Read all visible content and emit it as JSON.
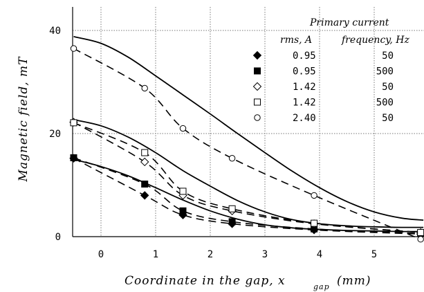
{
  "chart_data": {
    "type": "line",
    "xlabel": "Coordinate in the gap, x",
    "xlabel_subscript": "gap",
    "xlabel_unit": "(mm)",
    "ylabel": "Magnetic field, mT",
    "xlim": [
      -0.5,
      5.9
    ],
    "ylim": [
      0,
      40
    ],
    "xticks": [
      0,
      1,
      2,
      3,
      4,
      5
    ],
    "yticks": [
      0,
      20,
      40
    ],
    "grid": "dotted",
    "legend": {
      "placement": "top-right",
      "title": "Primary current",
      "columns": [
        "rms, A",
        "frequency, Hz"
      ]
    },
    "series": [
      {
        "marker": "filled-diamond",
        "current": "0.95",
        "frequency": "50",
        "points": [
          [
            -0.5,
            15.2
          ],
          [
            0.8,
            8.0
          ],
          [
            1.5,
            4.2
          ],
          [
            2.4,
            2.5
          ],
          [
            3.9,
            1.3
          ],
          [
            5.85,
            0.5
          ]
        ]
      },
      {
        "marker": "filled-square",
        "current": "0.95",
        "frequency": "500",
        "points": [
          [
            -0.5,
            15.3
          ],
          [
            0.8,
            10.2
          ],
          [
            1.5,
            5.0
          ],
          [
            2.4,
            2.9
          ],
          [
            3.9,
            1.5
          ],
          [
            5.85,
            0.6
          ]
        ]
      },
      {
        "marker": "open-diamond",
        "current": "1.42",
        "frequency": "50",
        "points": [
          [
            -0.5,
            22.2
          ],
          [
            0.8,
            14.5
          ],
          [
            1.5,
            8.0
          ],
          [
            2.4,
            5.0
          ],
          [
            3.9,
            2.5
          ],
          [
            5.85,
            0.8
          ]
        ]
      },
      {
        "marker": "open-square",
        "current": "1.42",
        "frequency": "500",
        "points": [
          [
            -0.5,
            22.1
          ],
          [
            0.8,
            16.3
          ],
          [
            1.5,
            8.8
          ],
          [
            2.4,
            5.4
          ],
          [
            3.9,
            2.6
          ],
          [
            5.85,
            0.8
          ]
        ]
      },
      {
        "marker": "open-circle",
        "current": "2.40",
        "frequency": "50",
        "points": [
          [
            -0.5,
            36.5
          ],
          [
            0.8,
            28.8
          ],
          [
            1.5,
            21.0
          ],
          [
            2.4,
            15.2
          ],
          [
            3.9,
            8.0
          ],
          [
            5.85,
            -0.5
          ]
        ]
      }
    ],
    "solid_curves": [
      {
        "points": [
          [
            -0.5,
            38.8
          ],
          [
            0,
            37.5
          ],
          [
            0.5,
            34.8
          ],
          [
            1,
            31.2
          ],
          [
            1.5,
            27.5
          ],
          [
            2,
            23.8
          ],
          [
            2.5,
            20.0
          ],
          [
            3,
            16.3
          ],
          [
            3.5,
            12.7
          ],
          [
            4,
            9.5
          ],
          [
            4.5,
            6.8
          ],
          [
            5,
            4.8
          ],
          [
            5.5,
            3.6
          ],
          [
            5.9,
            3.2
          ]
        ]
      },
      {
        "points": [
          [
            -0.5,
            22.7
          ],
          [
            0,
            21.5
          ],
          [
            0.5,
            19.3
          ],
          [
            1,
            16.3
          ],
          [
            1.5,
            12.8
          ],
          [
            2,
            9.8
          ],
          [
            2.5,
            7.0
          ],
          [
            3,
            4.8
          ],
          [
            3.5,
            3.3
          ],
          [
            4,
            2.5
          ],
          [
            4.5,
            2.1
          ],
          [
            5,
            1.9
          ],
          [
            5.5,
            1.8
          ],
          [
            5.9,
            1.8
          ]
        ]
      },
      {
        "points": [
          [
            -0.5,
            15.0
          ],
          [
            0,
            13.6
          ],
          [
            0.5,
            11.8
          ],
          [
            1,
            9.5
          ],
          [
            1.5,
            7.1
          ],
          [
            2,
            5.0
          ],
          [
            2.5,
            3.4
          ],
          [
            3,
            2.3
          ],
          [
            3.5,
            1.7
          ],
          [
            4,
            1.4
          ],
          [
            4.5,
            1.2
          ],
          [
            5,
            1.1
          ],
          [
            5.5,
            1.0
          ],
          [
            5.9,
            1.0
          ]
        ]
      }
    ],
    "dashed_curves": [
      {
        "points": [
          [
            -0.5,
            36.5
          ],
          [
            0.8,
            28.8
          ],
          [
            1.5,
            21.0
          ],
          [
            2.4,
            15.2
          ],
          [
            3.9,
            8.0
          ],
          [
            5.85,
            -0.5
          ]
        ]
      },
      {
        "points": [
          [
            -0.5,
            22.2
          ],
          [
            0.8,
            14.5
          ],
          [
            1.5,
            8.0
          ],
          [
            2.4,
            5.0
          ],
          [
            3.9,
            2.5
          ],
          [
            5.85,
            0.8
          ]
        ]
      },
      {
        "points": [
          [
            -0.5,
            22.1
          ],
          [
            0.8,
            16.3
          ],
          [
            1.5,
            8.8
          ],
          [
            2.4,
            5.4
          ],
          [
            3.9,
            2.6
          ],
          [
            5.85,
            0.8
          ]
        ]
      },
      {
        "points": [
          [
            -0.5,
            15.3
          ],
          [
            0.8,
            10.2
          ],
          [
            1.5,
            5.0
          ],
          [
            2.4,
            2.9
          ],
          [
            3.9,
            1.5
          ],
          [
            5.85,
            0.6
          ]
        ]
      },
      {
        "points": [
          [
            -0.5,
            15.2
          ],
          [
            0.8,
            8.0
          ],
          [
            1.5,
            4.2
          ],
          [
            2.4,
            2.5
          ],
          [
            3.9,
            1.3
          ],
          [
            5.85,
            0.5
          ]
        ]
      }
    ]
  }
}
